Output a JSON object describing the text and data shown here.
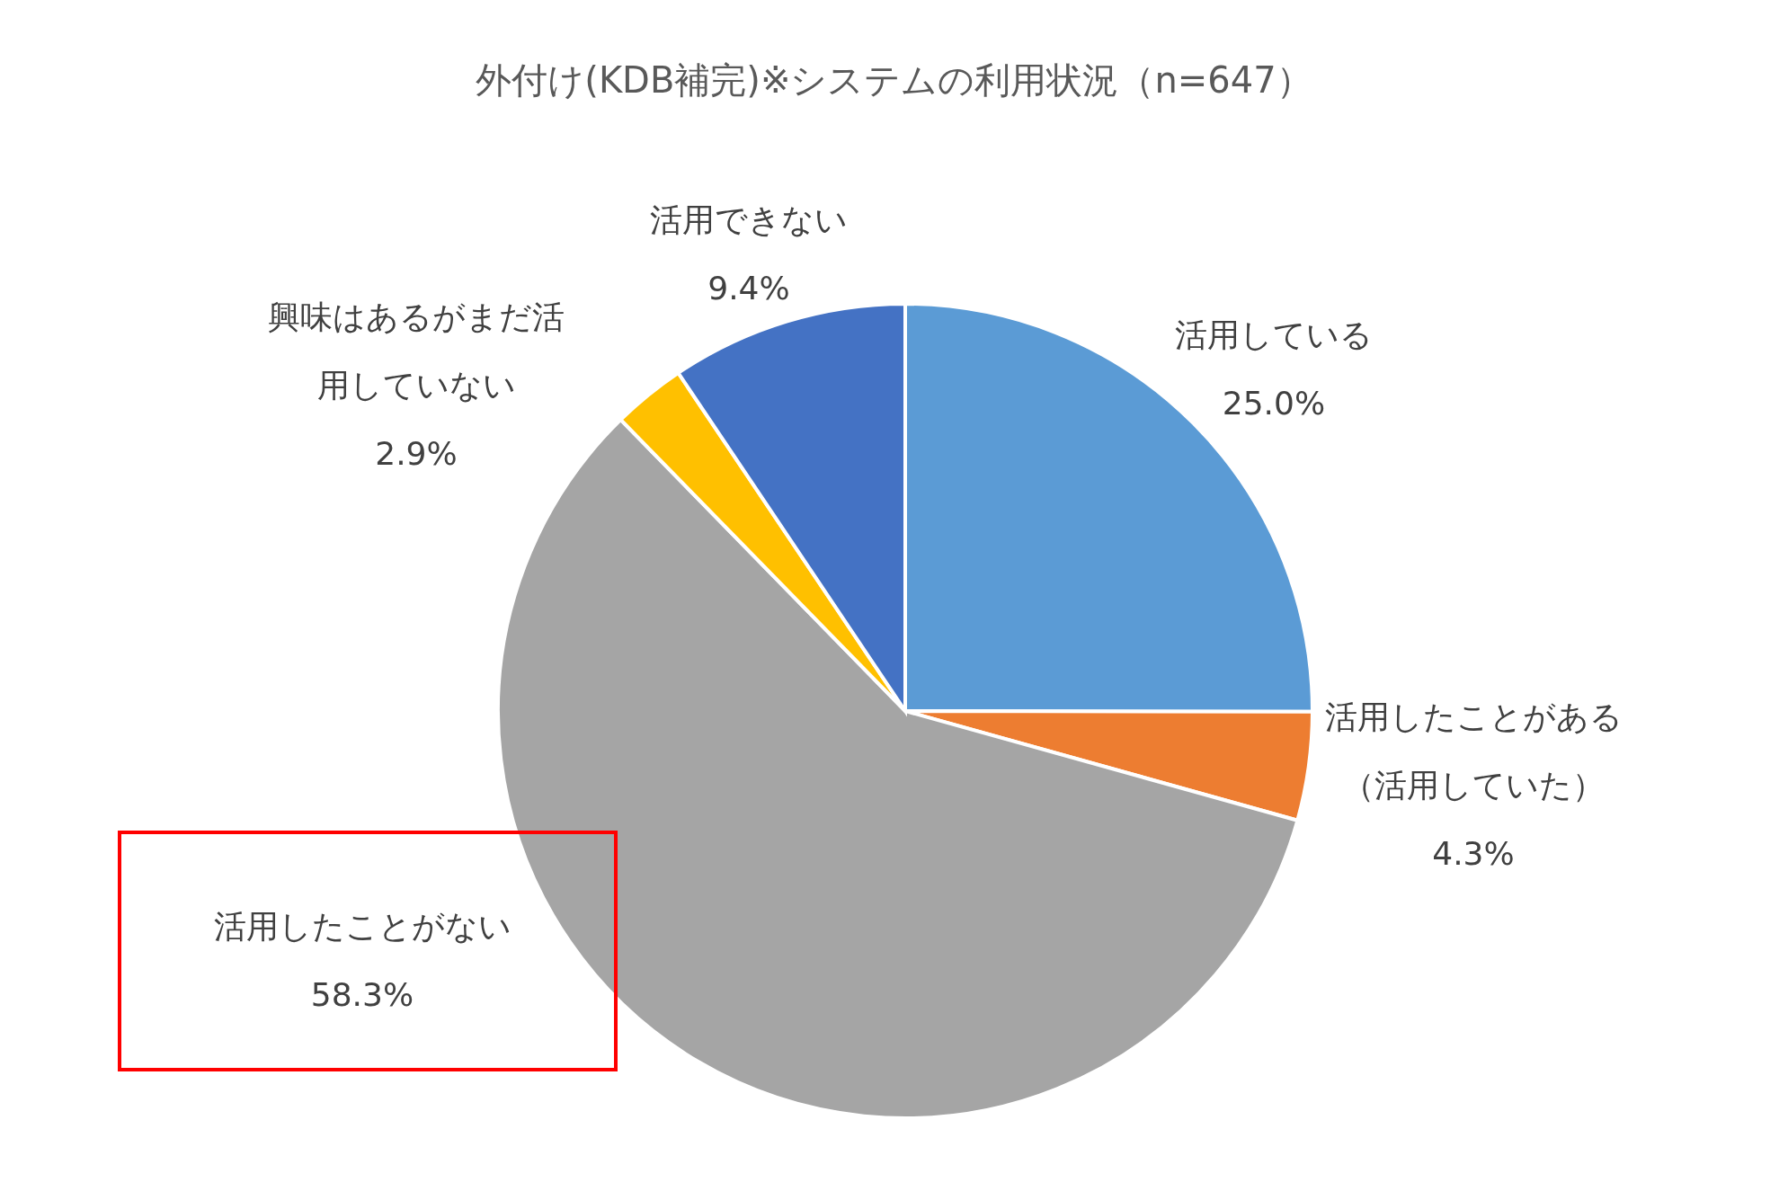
{
  "chart_data": {
    "type": "pie",
    "title": "外付け(KDB補完)※システムの利用状況（n=647）",
    "categories": [
      "活用している",
      "活用したことがある（活用していた）",
      "活用したことがない",
      "興味はあるがまだ活用していない",
      "活用できない"
    ],
    "values": [
      25.0,
      4.3,
      58.3,
      2.9,
      9.4
    ],
    "value_labels": [
      "25.0%",
      "4.3%",
      "58.3%",
      "2.9%",
      "9.4%"
    ],
    "colors": [
      "#5b9bd5",
      "#ed7d31",
      "#a5a5a5",
      "#ffc000",
      "#4472c4"
    ],
    "legend": false
  }
}
